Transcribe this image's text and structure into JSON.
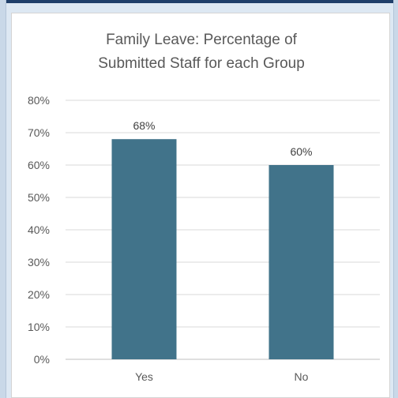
{
  "chart_data": {
    "type": "bar",
    "title": "Family Leave: Percentage of Submitted Staff for each Group",
    "title_lines": [
      "Family Leave: Percentage of",
      "Submitted Staff for each Group"
    ],
    "categories": [
      "Yes",
      "No"
    ],
    "values": [
      68,
      60
    ],
    "data_labels": [
      "68%",
      "60%"
    ],
    "ylim": [
      0,
      80
    ],
    "yticks": [
      0,
      10,
      20,
      30,
      40,
      50,
      60,
      70,
      80
    ],
    "ytick_labels": [
      "0%",
      "10%",
      "20%",
      "30%",
      "40%",
      "50%",
      "60%",
      "70%",
      "80%"
    ],
    "xlabel": "",
    "ylabel": "",
    "grid": true,
    "legend": "none",
    "bar_color": "#41738a"
  }
}
